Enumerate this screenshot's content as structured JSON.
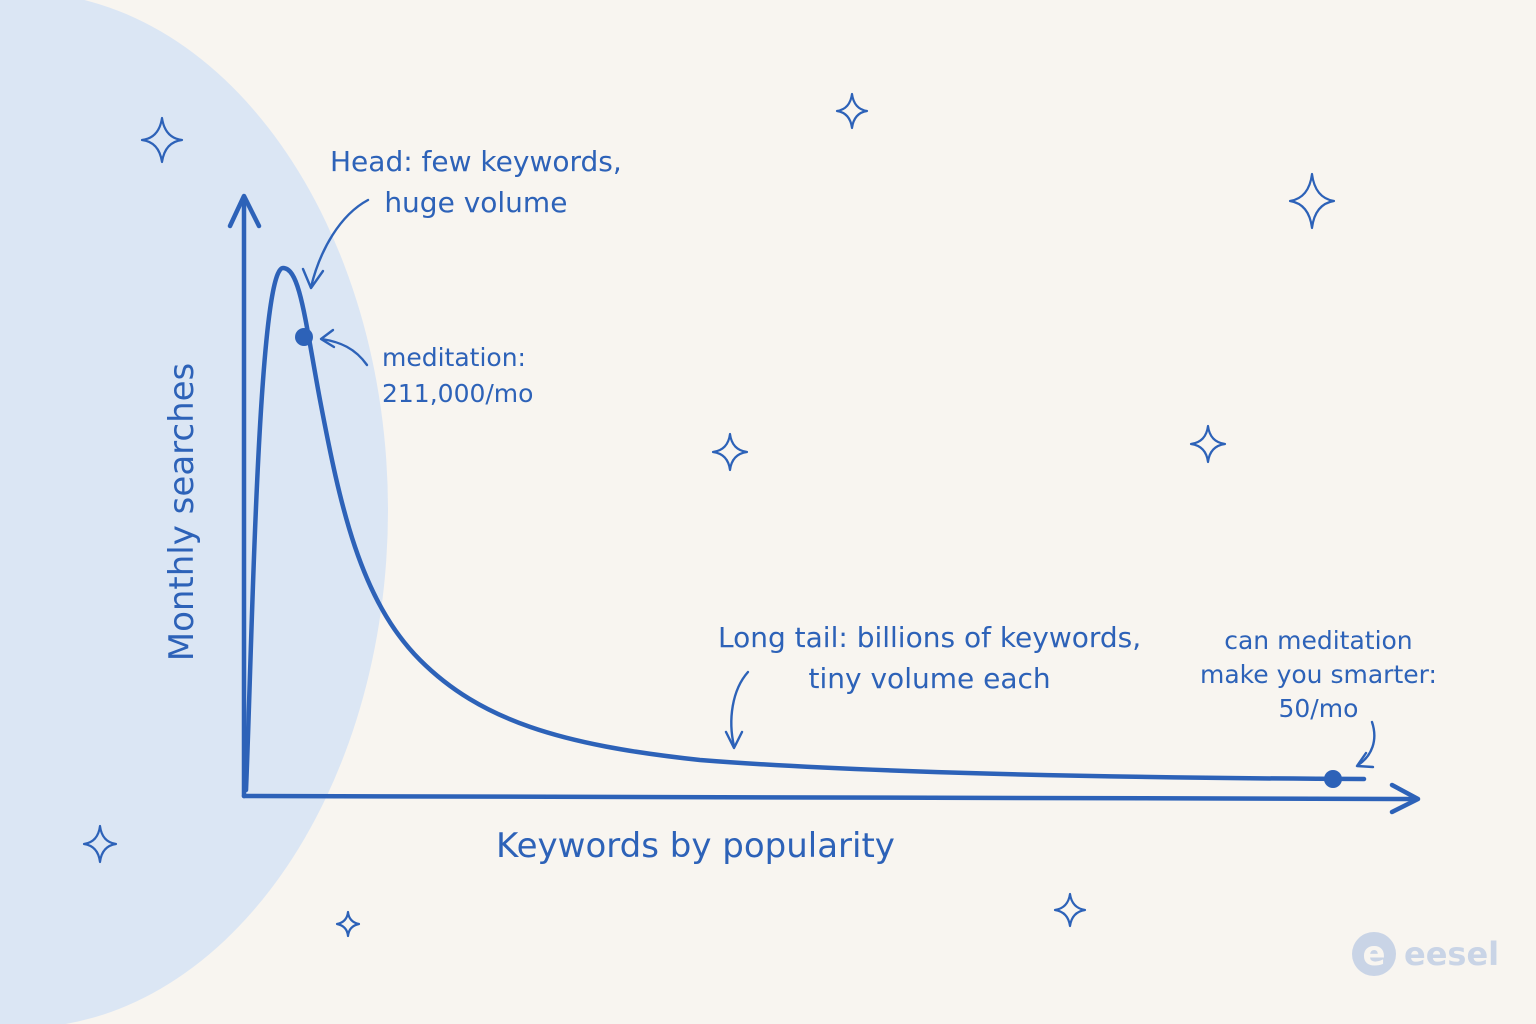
{
  "colors": {
    "background": "#f8f5f0",
    "ink": "#2d62b8",
    "highlight": "#dbe6f4",
    "logo": "#c9d4e6"
  },
  "chart_data": {
    "type": "line",
    "xlabel": "Keywords by popularity",
    "ylabel": "Monthly searches",
    "annotations": {
      "head": [
        "Head: few keywords,",
        "huge volume"
      ],
      "tail": [
        "Long tail: billions of keywords,",
        "tiny volume each"
      ],
      "head_point": [
        "meditation:",
        "211,000/mo"
      ],
      "tail_point": [
        "can meditation",
        "make you smarter:",
        "50/mo"
      ]
    },
    "points": [
      {
        "keyword": "meditation",
        "monthly_searches": 211000
      },
      {
        "keyword": "can meditation make you smarter",
        "monthly_searches": 50
      }
    ]
  },
  "decorations": {
    "stars": 9,
    "icon": "sparkle-icon"
  },
  "brand": {
    "mark": "e",
    "name": "eesel"
  }
}
